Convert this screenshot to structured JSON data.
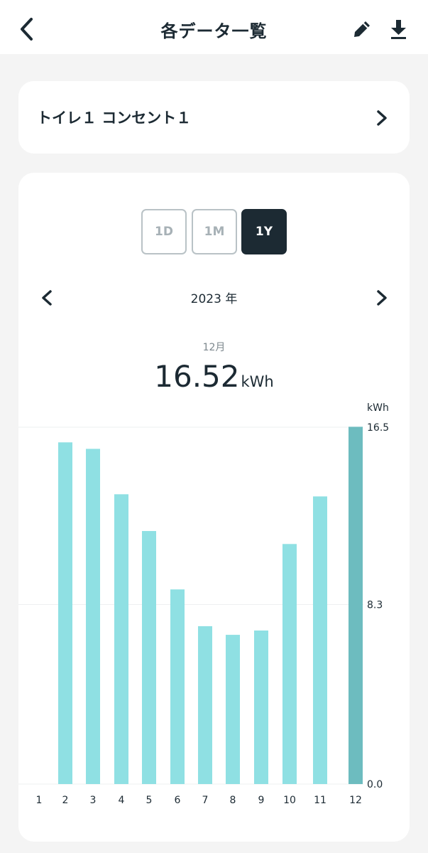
{
  "header": {
    "title": "各データ一覧",
    "back_icon": "chevron-left-icon",
    "edit_icon": "pencil-icon",
    "download_icon": "download-icon"
  },
  "device": {
    "name": "トイレ１ コンセント１",
    "chevron_icon": "chevron-right-icon"
  },
  "period_tabs": [
    {
      "label": "1D",
      "active": false
    },
    {
      "label": "1M",
      "active": false
    },
    {
      "label": "1Y",
      "active": true
    }
  ],
  "year_nav": {
    "label": "2023 年",
    "prev_icon": "chevron-left-icon",
    "next_icon": "chevron-right-icon"
  },
  "selected": {
    "month": "12月",
    "value": "16.52",
    "unit": "kWh"
  },
  "colors": {
    "bar": "#8fe0e3",
    "bar_selected": "#6dbcbf",
    "text": "#1c2a33",
    "grid": "#eef0f1"
  },
  "chart_data": {
    "type": "bar",
    "categories": [
      "1",
      "2",
      "3",
      "4",
      "5",
      "6",
      "7",
      "8",
      "9",
      "10",
      "11",
      "12"
    ],
    "values": [
      0,
      15.8,
      15.5,
      13.4,
      11.7,
      9.0,
      7.3,
      6.9,
      7.1,
      11.1,
      13.3,
      16.52
    ],
    "selected_index": 11,
    "y_unit": "kWh",
    "y_ticks": [
      "0.0",
      "8.3",
      "16.5"
    ],
    "ylim": [
      0,
      16.5
    ],
    "grid": true
  }
}
